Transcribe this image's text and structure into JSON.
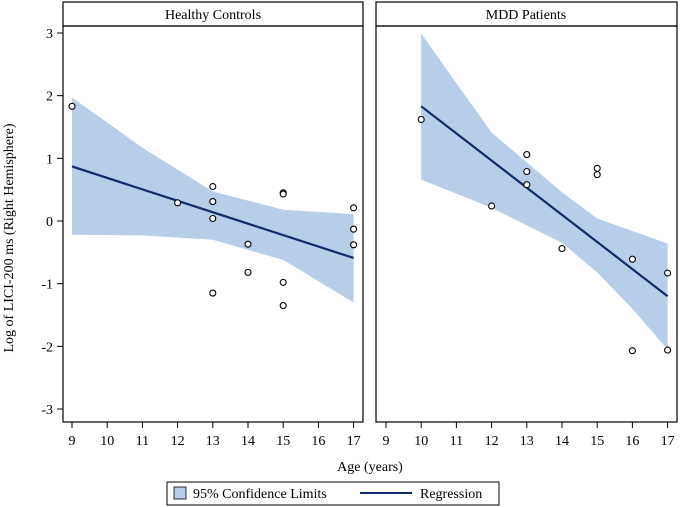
{
  "chart_data": {
    "type": "scatter",
    "ylabel": "Log of LICI-200 ms (Right Hemisphere)",
    "xlabel": "Age (years)",
    "xlim": [
      9,
      17
    ],
    "ylim": [
      -3,
      3
    ],
    "x_ticks": [
      9,
      10,
      11,
      12,
      13,
      14,
      15,
      16,
      17
    ],
    "y_ticks": [
      3,
      2,
      1,
      0,
      -1,
      -2,
      -3
    ],
    "legend": {
      "position": "bottom",
      "band_label": "95% Confidence Limits",
      "line_label": "Regression"
    },
    "colors": {
      "band": "#b7cde8",
      "line": "#102a6b",
      "marker": "#000000",
      "header_fill": "#ffffff"
    },
    "panels": [
      {
        "title": "Healthy Controls",
        "points": [
          [
            9,
            1.83
          ],
          [
            12,
            0.29
          ],
          [
            13,
            0.55
          ],
          [
            13,
            0.31
          ],
          [
            13,
            0.04
          ],
          [
            13,
            -1.15
          ],
          [
            14,
            -0.37
          ],
          [
            14,
            -0.82
          ],
          [
            15,
            0.45
          ],
          [
            15,
            0.43
          ],
          [
            15,
            -0.98
          ],
          [
            15,
            -1.35
          ],
          [
            17,
            0.21
          ],
          [
            17,
            -0.13
          ],
          [
            17,
            -0.38
          ]
        ],
        "regression": {
          "x": [
            9,
            17
          ],
          "y": [
            0.87,
            -0.59
          ]
        },
        "band": {
          "x": [
            9,
            11,
            13,
            15,
            17
          ],
          "lower": [
            -0.22,
            -0.23,
            -0.3,
            -0.62,
            -1.3
          ],
          "upper": [
            1.97,
            1.17,
            0.47,
            0.18,
            0.11
          ]
        }
      },
      {
        "title": "MDD Patients",
        "points": [
          [
            10,
            1.62
          ],
          [
            12,
            0.24
          ],
          [
            13,
            1.06
          ],
          [
            13,
            0.79
          ],
          [
            13,
            0.58
          ],
          [
            14,
            -0.44
          ],
          [
            15,
            0.84
          ],
          [
            15,
            0.74
          ],
          [
            16,
            -0.61
          ],
          [
            16,
            -2.07
          ],
          [
            17,
            -0.83
          ],
          [
            17,
            -2.06
          ]
        ],
        "regression": {
          "x": [
            10,
            17
          ],
          "y": [
            1.83,
            -1.2
          ]
        },
        "band": {
          "x": [
            10,
            12,
            14,
            15,
            16,
            17
          ],
          "lower": [
            0.66,
            0.21,
            -0.35,
            -0.82,
            -1.4,
            -2.05
          ],
          "upper": [
            2.99,
            1.41,
            0.46,
            0.04,
            -0.16,
            -0.36
          ]
        }
      }
    ]
  }
}
